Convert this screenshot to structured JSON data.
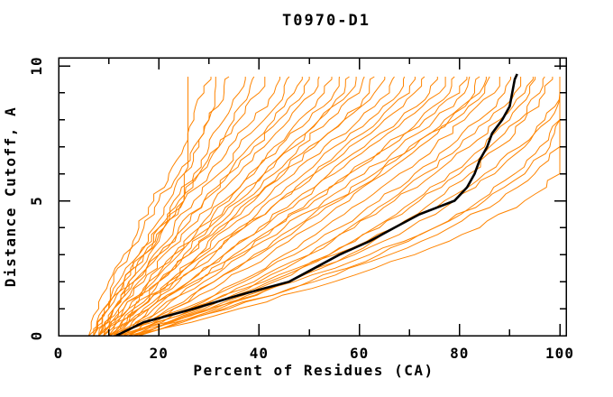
{
  "title": "T0970-D1",
  "colors": {
    "background": "#ffffff",
    "frame": "#000000",
    "model_line": "#ff8400",
    "highlight_line": "#000000",
    "text": "#000000"
  },
  "chart_data": {
    "type": "line",
    "title": "T0970-D1",
    "xlabel": "Percent of Residues (CA)",
    "ylabel": "Distance Cutoff, A",
    "xlim": [
      0,
      101.3
    ],
    "ylim": [
      0,
      10.3
    ],
    "x_ticks_major": [
      0,
      20,
      40,
      60,
      80,
      100
    ],
    "x_ticks_minor": [
      10,
      30,
      50,
      70,
      90
    ],
    "y_ticks_major": [
      0,
      5,
      10
    ],
    "y_ticks_minor": [
      1,
      2,
      3,
      4,
      6,
      7,
      8,
      9
    ],
    "grid": false,
    "legend": "none",
    "series_style": "percent of CA residues under each distance cutoff; orange = server models, black = highlighted model",
    "cutoffs": [
      0,
      1,
      2,
      3,
      4,
      5,
      6,
      7,
      8,
      9,
      9.6
    ],
    "models": [
      [
        7,
        10,
        13,
        17,
        21,
        25,
        25,
        25,
        25,
        25,
        25
      ],
      [
        6,
        8,
        10,
        13,
        16,
        19,
        22,
        25,
        27,
        29,
        30
      ],
      [
        8,
        10,
        13,
        16,
        19,
        22,
        25,
        28,
        30,
        31,
        31
      ],
      [
        7,
        9,
        11,
        14,
        17,
        20,
        24,
        27,
        30,
        33,
        34
      ],
      [
        8,
        11,
        14,
        17,
        20,
        23,
        27,
        30,
        33,
        36,
        37
      ],
      [
        9,
        11,
        14,
        18,
        21,
        25,
        28,
        32,
        35,
        38,
        39
      ],
      [
        6,
        9,
        12,
        16,
        20,
        24,
        28,
        32,
        36,
        40,
        41
      ],
      [
        7,
        10,
        13,
        17,
        21,
        25,
        30,
        34,
        39,
        43,
        44
      ],
      [
        8,
        11,
        15,
        19,
        23,
        27,
        32,
        36,
        41,
        45,
        46
      ],
      [
        9,
        12,
        16,
        20,
        25,
        29,
        34,
        38,
        43,
        47,
        48
      ],
      [
        7,
        11,
        15,
        20,
        24,
        29,
        34,
        39,
        44,
        49,
        50
      ],
      [
        8,
        12,
        17,
        21,
        26,
        31,
        36,
        41,
        46,
        51,
        52
      ],
      [
        10,
        14,
        18,
        23,
        28,
        33,
        38,
        43,
        48,
        53,
        54
      ],
      [
        9,
        13,
        18,
        23,
        28,
        34,
        39,
        44,
        50,
        55,
        56
      ],
      [
        11,
        15,
        20,
        25,
        30,
        36,
        41,
        47,
        52,
        57,
        58
      ],
      [
        8,
        13,
        19,
        24,
        30,
        35,
        41,
        46,
        52,
        58,
        59
      ],
      [
        10,
        15,
        20,
        26,
        31,
        37,
        43,
        48,
        54,
        60,
        61
      ],
      [
        12,
        17,
        22,
        28,
        33,
        39,
        45,
        51,
        57,
        62,
        63
      ],
      [
        9,
        14,
        20,
        26,
        32,
        38,
        44,
        50,
        57,
        63,
        65
      ],
      [
        11,
        16,
        22,
        28,
        34,
        41,
        47,
        53,
        60,
        66,
        67
      ],
      [
        10,
        16,
        23,
        29,
        36,
        42,
        49,
        55,
        62,
        68,
        69
      ],
      [
        12,
        18,
        24,
        31,
        37,
        44,
        51,
        57,
        64,
        70,
        71
      ],
      [
        9,
        16,
        23,
        30,
        37,
        44,
        51,
        58,
        65,
        71,
        73
      ],
      [
        13,
        19,
        26,
        33,
        40,
        47,
        54,
        61,
        68,
        74,
        75
      ],
      [
        11,
        18,
        26,
        33,
        41,
        48,
        55,
        62,
        69,
        76,
        77
      ],
      [
        14,
        21,
        28,
        36,
        43,
        50,
        58,
        65,
        72,
        78,
        79
      ],
      [
        10,
        18,
        27,
        35,
        43,
        51,
        58,
        66,
        73,
        80,
        81
      ],
      [
        12,
        20,
        29,
        37,
        45,
        53,
        61,
        68,
        75,
        81,
        82
      ],
      [
        15,
        23,
        31,
        39,
        47,
        55,
        63,
        70,
        77,
        83,
        84
      ],
      [
        13,
        22,
        31,
        40,
        48,
        56,
        64,
        71,
        78,
        84,
        85
      ],
      [
        12,
        23,
        33,
        42,
        50,
        58,
        65,
        72,
        79,
        85,
        86
      ],
      [
        14,
        26,
        36,
        45,
        53,
        61,
        68,
        75,
        81,
        87,
        88
      ],
      [
        11,
        25,
        37,
        47,
        56,
        64,
        71,
        78,
        84,
        89,
        90
      ],
      [
        16,
        29,
        40,
        50,
        58,
        66,
        73,
        80,
        86,
        91,
        92
      ],
      [
        13,
        27,
        39,
        50,
        59,
        67,
        75,
        82,
        88,
        93,
        94
      ],
      [
        15,
        30,
        43,
        54,
        63,
        71,
        78,
        85,
        90,
        94,
        95
      ],
      [
        12,
        28,
        42,
        54,
        64,
        72,
        80,
        86,
        92,
        96,
        97
      ],
      [
        16,
        32,
        46,
        58,
        67,
        75,
        82,
        88,
        93,
        97,
        98
      ],
      [
        14,
        31,
        46,
        59,
        70,
        79,
        87,
        93,
        98,
        100,
        100
      ],
      [
        15,
        34,
        50,
        64,
        75,
        84,
        91,
        96,
        100,
        100,
        100
      ],
      [
        13,
        33,
        51,
        66,
        78,
        88,
        95,
        100,
        100,
        100,
        100
      ],
      [
        16,
        36,
        55,
        71,
        84,
        93,
        100,
        100,
        100,
        100,
        100
      ],
      [
        12,
        30,
        47,
        62,
        75,
        85,
        93,
        98,
        100,
        100,
        100
      ],
      [
        10,
        26,
        41,
        55,
        67,
        77,
        85,
        92,
        97,
        100,
        100
      ]
    ],
    "highlight": {
      "cutoffs": [
        0,
        0.5,
        1,
        1.5,
        2,
        2.5,
        3,
        3.5,
        4,
        4.5,
        5,
        5.5,
        6,
        6.5,
        7,
        7.5,
        8,
        8.5,
        9,
        9.5,
        9.7
      ],
      "values": [
        11.5,
        17,
        27,
        36,
        46,
        51,
        56,
        62,
        67,
        72,
        79,
        81.5,
        83,
        84,
        85.5,
        86.5,
        88.5,
        90,
        90.5,
        91,
        91.5
      ]
    }
  }
}
